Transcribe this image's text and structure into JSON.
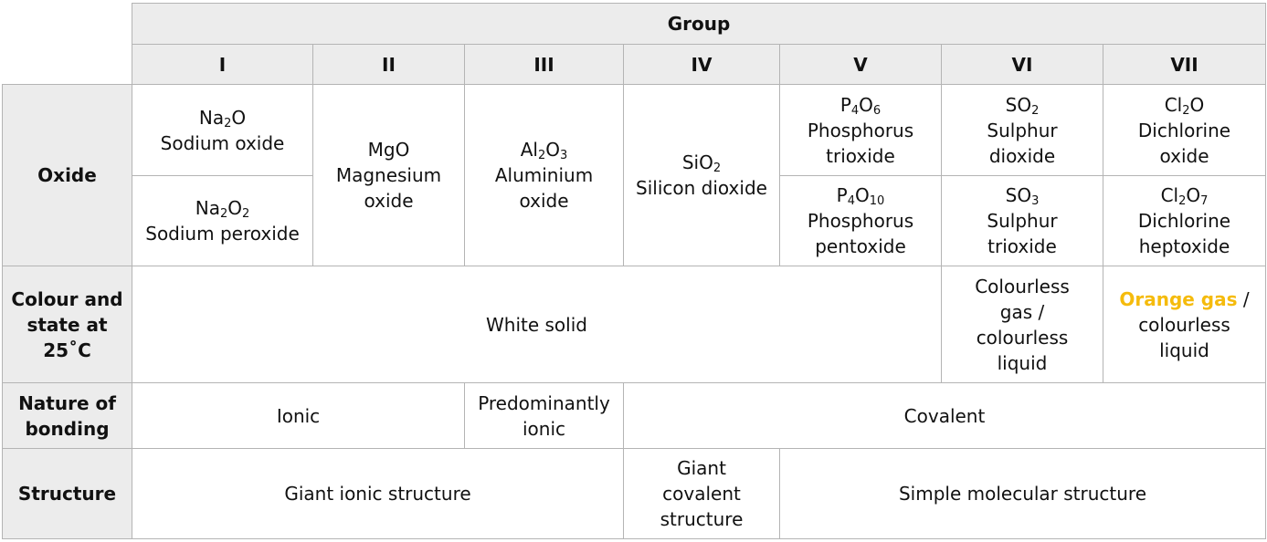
{
  "header": {
    "group_label": "Group",
    "groups": [
      "I",
      "II",
      "III",
      "IV",
      "V",
      "VI",
      "VII"
    ]
  },
  "rows": {
    "oxide_label": "Oxide",
    "colour_label": [
      "Colour and",
      "state at",
      "25˚C"
    ],
    "bonding_label": [
      "Nature of",
      "bonding"
    ],
    "structure_label": "Structure"
  },
  "oxides": {
    "group1_a": {
      "formula": [
        "Na",
        "2",
        "O"
      ],
      "name": [
        "Sodium oxide"
      ]
    },
    "group1_b": {
      "formula": [
        "Na",
        "2",
        "O",
        "2"
      ],
      "name": [
        "Sodium peroxide"
      ]
    },
    "group2": {
      "formula": [
        "MgO"
      ],
      "name": [
        "Magnesium",
        "oxide"
      ]
    },
    "group3": {
      "formula": [
        "Al",
        "2",
        "O",
        "3"
      ],
      "name": [
        "Aluminium",
        "oxide"
      ]
    },
    "group4": {
      "formula": [
        "SiO",
        "2"
      ],
      "name": [
        "Silicon dioxide"
      ]
    },
    "group5_a": {
      "formula": [
        "P",
        "4",
        "O",
        "6"
      ],
      "name": [
        "Phosphorus",
        "trioxide"
      ]
    },
    "group5_b": {
      "formula": [
        "P",
        "4",
        "O",
        "10"
      ],
      "name": [
        "Phosphorus",
        "pentoxide"
      ]
    },
    "group6_a": {
      "formula": [
        "SO",
        "2"
      ],
      "name": [
        "Sulphur",
        "dioxide"
      ]
    },
    "group6_b": {
      "formula": [
        "SO",
        "3"
      ],
      "name": [
        "Sulphur",
        "trioxide"
      ]
    },
    "group7_a": {
      "formula": [
        "Cl",
        "2",
        "O"
      ],
      "name": [
        "Dichlorine",
        "oxide"
      ]
    },
    "group7_b": {
      "formula": [
        "Cl",
        "2",
        "O",
        "7"
      ],
      "name": [
        "Dichlorine",
        "heptoxide"
      ]
    }
  },
  "colour_state": {
    "groups1_5": "White solid",
    "group6": [
      "Colourless",
      "gas /",
      "colourless",
      "liquid"
    ],
    "group7": {
      "highlight": "Orange gas",
      "rest_first": " /",
      "rest": [
        "colourless",
        "liquid"
      ]
    }
  },
  "bonding": {
    "groups1_2": "Ionic",
    "group3": [
      "Predominantly",
      "ionic"
    ],
    "groups4_7": "Covalent"
  },
  "structure": {
    "groups1_3": "Giant ionic structure",
    "group4": [
      "Giant",
      "covalent",
      "structure"
    ],
    "groups5_7": "Simple molecular structure"
  },
  "colors": {
    "header_bg": "#ececec",
    "border": "#b4b4b4",
    "highlight": "#f5bb0c"
  }
}
